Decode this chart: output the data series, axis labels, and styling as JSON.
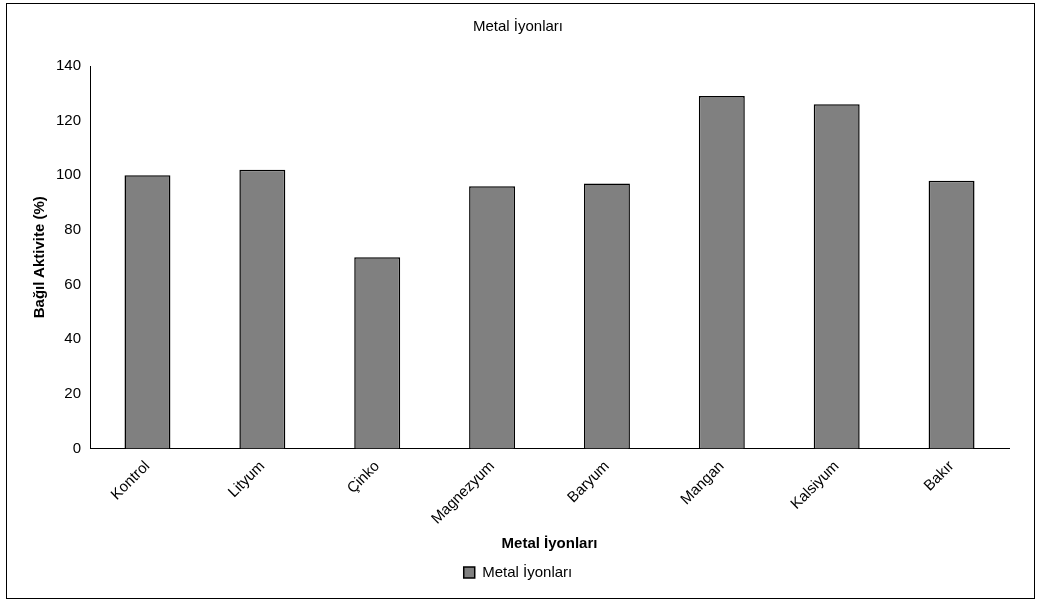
{
  "chart_data": {
    "type": "bar",
    "title": "Metal İyonları",
    "xlabel": "Metal İyonları",
    "ylabel": "Bağıl Aktivite (%)",
    "categories": [
      "Kontrol",
      "Lityum",
      "Çinko",
      "Magnezyum",
      "Baryum",
      "Mangan",
      "Kalsiyum",
      "Bakır"
    ],
    "series": [
      {
        "name": "Metal İyonları",
        "color": "#808080",
        "values": [
          100,
          102,
          70,
          96,
          97,
          129,
          126,
          98
        ]
      }
    ],
    "ylim": [
      0,
      140
    ],
    "yticks": [
      0,
      20,
      40,
      60,
      80,
      100,
      120,
      140
    ],
    "grid": false,
    "legend": "bottom"
  }
}
